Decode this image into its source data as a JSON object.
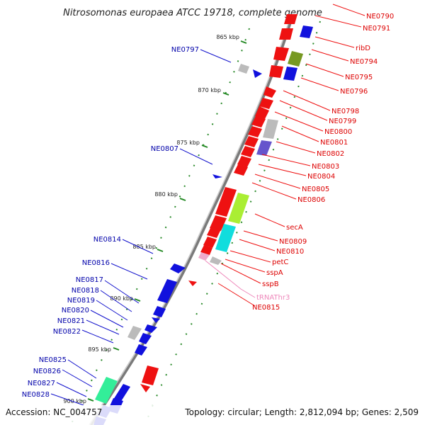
{
  "title": "Nitrosomonas europaea ATCC 19718, complete genome",
  "footer": {
    "accession": "Accession: NC_004757",
    "info": "Topology: circular; Length: 2,812,094 bp; Genes: 2,509"
  },
  "colors": {
    "forward_strand": "#ee1111",
    "reverse_strand": "#1111dd",
    "label_right": "#dd0000",
    "label_left": "#0000aa",
    "trna": "#ee88bb",
    "backbone": "#888888",
    "tick": "#228822"
  },
  "ticks": [
    {
      "label": "865 kbp"
    },
    {
      "label": "870 kbp"
    },
    {
      "label": "875 kbp"
    },
    {
      "label": "880 kbp"
    },
    {
      "label": "885 kbp"
    },
    {
      "label": "890 kbp"
    },
    {
      "label": "895 kbp"
    },
    {
      "label": "900 kbp"
    }
  ],
  "right_labels": [
    {
      "text": "NE0790"
    },
    {
      "text": "NE0791"
    },
    {
      "text": "ribD"
    },
    {
      "text": "NE0794"
    },
    {
      "text": "NE0795"
    },
    {
      "text": "NE0796"
    },
    {
      "text": "NE0798"
    },
    {
      "text": "NE0799"
    },
    {
      "text": "NE0800"
    },
    {
      "text": "NE0801"
    },
    {
      "text": "NE0802"
    },
    {
      "text": "NE0803"
    },
    {
      "text": "NE0804"
    },
    {
      "text": "NE0805"
    },
    {
      "text": "NE0806"
    },
    {
      "text": "secA"
    },
    {
      "text": "NE0809"
    },
    {
      "text": "NE0810"
    },
    {
      "text": "petC"
    },
    {
      "text": "sspA"
    },
    {
      "text": "sspB"
    },
    {
      "text": "tRNAThr3"
    },
    {
      "text": "NE0815"
    }
  ],
  "left_labels": [
    {
      "text": "NE0797"
    },
    {
      "text": "NE0807"
    },
    {
      "text": "NE0814"
    },
    {
      "text": "NE0816"
    },
    {
      "text": "NE0817"
    },
    {
      "text": "NE0818"
    },
    {
      "text": "NE0819"
    },
    {
      "text": "NE0820"
    },
    {
      "text": "NE0821"
    },
    {
      "text": "NE0822"
    },
    {
      "text": "NE0825"
    },
    {
      "text": "NE0826"
    },
    {
      "text": "NE0827"
    },
    {
      "text": "NE0828"
    }
  ]
}
